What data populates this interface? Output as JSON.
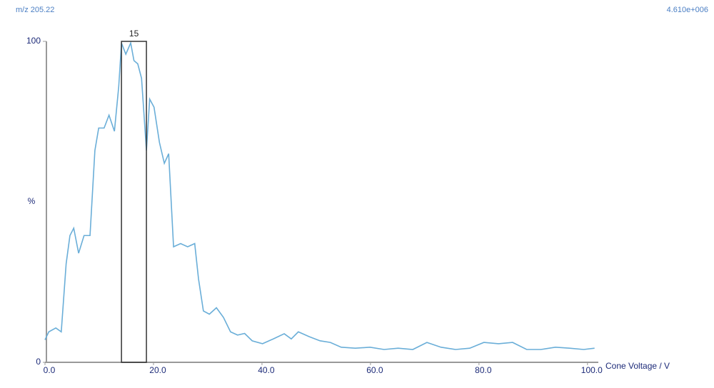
{
  "chart_data": {
    "type": "line",
    "title": "m/z 205.22",
    "subtitle": "4.610e+006",
    "x_label": "Cone Voltage / V",
    "y_label": "%",
    "x": [
      0,
      0.7,
      2,
      3,
      3.9,
      4.6,
      5.3,
      6.2,
      7.2,
      8.3,
      9.2,
      9.9,
      10.9,
      11.8,
      12.8,
      13.6,
      14.1,
      14.9,
      15.8,
      16.4,
      17.1,
      17.8,
      18.7,
      19.3,
      20.1,
      21.1,
      22,
      22.8,
      23.7,
      25,
      26.3,
      27.6,
      28.3,
      29.2,
      30.3,
      31.6,
      32.9,
      34.2,
      35.5,
      36.8,
      38.2,
      40.1,
      42.1,
      44.1,
      45.4,
      46.7,
      48.7,
      50.7,
      52.6,
      54.6,
      57.2,
      59.9,
      62.5,
      65.1,
      67.8,
      70.4,
      73,
      75.7,
      78.3,
      80.9,
      83.6,
      86.2,
      88.8,
      91.4,
      94.1,
      96.7,
      99.3,
      101.3
    ],
    "series": [
      {
        "name": "m/z 205.22",
        "color": "#6aaed8",
        "values": [
          7,
          9.5,
          10.7,
          9.5,
          30.7,
          39.5,
          41.8,
          34,
          39.5,
          39.5,
          66,
          73,
          73,
          77,
          72,
          86,
          99.5,
          96,
          99.5,
          94,
          93,
          88.5,
          66,
          82,
          79.5,
          68.5,
          62,
          65,
          36,
          37,
          36,
          37,
          26,
          16,
          15,
          17,
          14,
          9.5,
          8.5,
          9,
          6.7,
          5.8,
          7.3,
          8.9,
          7.3,
          9.5,
          8,
          6.7,
          6.2,
          4.7,
          4.4,
          4.7,
          4,
          4.4,
          4,
          6.2,
          4.7,
          4,
          4.4,
          6.2,
          5.8,
          6.2,
          4,
          4,
          4.7,
          4.4,
          4,
          4.4
        ]
      }
    ],
    "xlim": [
      0,
      102
    ],
    "ylim": [
      0,
      100
    ],
    "xticks": [
      {
        "value": 0,
        "label": "0.0"
      },
      {
        "value": 20,
        "label": "20.0"
      },
      {
        "value": 40,
        "label": "40.0"
      },
      {
        "value": 60,
        "label": "60.0"
      },
      {
        "value": 80,
        "label": "80.0"
      },
      {
        "value": 100,
        "label": "100.0"
      }
    ],
    "yticks": [
      0,
      100
    ],
    "annotations": [
      {
        "text": "15",
        "x0": 14.1,
        "x1": 18.7
      }
    ]
  }
}
